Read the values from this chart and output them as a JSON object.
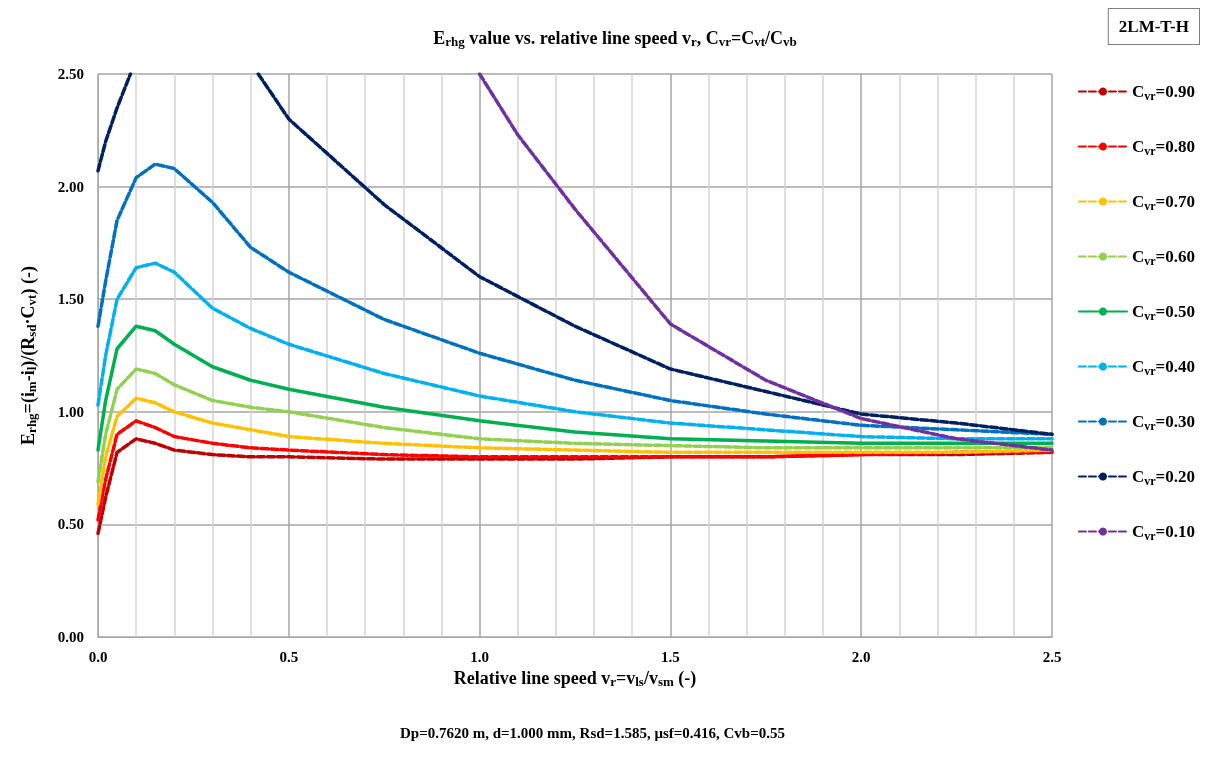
{
  "chart_data": {
    "type": "line",
    "title": "E$_{rhg}$ value vs. relative line speed v$_{r}$, C$_{vr}$=C$_{vt}$/C$_{vb}$",
    "xlabel": "Relative line speed v$_{r}$=v$_{ls}$/v$_{sm}$ (-)",
    "ylabel": "E$_{rhg}$=(i$_{m}$-i$_{l}$)/(R$_{sd}$·C$_{vt}$) (-)",
    "annotations": [
      "2LM-T-H",
      "Dp=0.7620 m, d=1.000 mm, Rsd=1.585, μsf=0.416, Cvb=0.55"
    ],
    "x": [
      0,
      0.02,
      0.05,
      0.1,
      0.15,
      0.2,
      0.3,
      0.4,
      0.5,
      0.75,
      1.0,
      1.25,
      1.5,
      1.75,
      2.0,
      2.25,
      2.5
    ],
    "series": [
      {
        "name": "C$_{vr}$=0.90",
        "color": "#c00000",
        "line_style": "dashed",
        "values": [
          0.46,
          0.62,
          0.82,
          0.88,
          0.86,
          0.83,
          0.81,
          0.8,
          0.8,
          0.79,
          0.79,
          0.79,
          0.8,
          0.8,
          0.81,
          0.81,
          0.82
        ]
      },
      {
        "name": "C$_{vr}$=0.80",
        "color": "#ff0000",
        "line_style": "dashed",
        "values": [
          0.52,
          0.7,
          0.9,
          0.96,
          0.93,
          0.89,
          0.86,
          0.84,
          0.83,
          0.81,
          0.8,
          0.8,
          0.8,
          0.8,
          0.81,
          0.82,
          0.82
        ]
      },
      {
        "name": "C$_{vr}$=0.70",
        "color": "#ffc000",
        "line_style": "dashed",
        "values": [
          0.59,
          0.8,
          0.98,
          1.06,
          1.04,
          1.0,
          0.95,
          0.92,
          0.89,
          0.86,
          0.84,
          0.83,
          0.82,
          0.82,
          0.82,
          0.82,
          0.83
        ]
      },
      {
        "name": "C$_{vr}$=0.60",
        "color": "#92d050",
        "line_style": "dashed",
        "values": [
          0.69,
          0.9,
          1.1,
          1.19,
          1.17,
          1.12,
          1.05,
          1.02,
          1.0,
          0.93,
          0.88,
          0.86,
          0.85,
          0.84,
          0.84,
          0.84,
          0.84
        ]
      },
      {
        "name": "C$_{vr}$=0.50",
        "color": "#00b050",
        "line_style": "solid",
        "values": [
          0.83,
          1.05,
          1.28,
          1.38,
          1.36,
          1.3,
          1.2,
          1.14,
          1.1,
          1.02,
          0.96,
          0.91,
          0.88,
          0.87,
          0.86,
          0.86,
          0.86
        ]
      },
      {
        "name": "C$_{vr}$=0.40",
        "color": "#00b0f0",
        "line_style": "dashed",
        "values": [
          1.03,
          1.25,
          1.5,
          1.64,
          1.66,
          1.62,
          1.46,
          1.37,
          1.3,
          1.17,
          1.07,
          1.0,
          0.95,
          0.92,
          0.89,
          0.88,
          0.88
        ]
      },
      {
        "name": "C$_{vr}$=0.30",
        "color": "#0070c0",
        "line_style": "dashed",
        "values": [
          1.38,
          1.58,
          1.85,
          2.04,
          2.1,
          2.08,
          1.93,
          1.73,
          1.62,
          1.41,
          1.26,
          1.14,
          1.05,
          0.99,
          0.94,
          0.92,
          0.9
        ]
      },
      {
        "name": "C$_{vr}$=0.20",
        "color": "#002060",
        "line_style": "dashed",
        "x": [
          0,
          0.02,
          0.05,
          0.085,
          0.1,
          0.42,
          0.5,
          0.75,
          1.0,
          1.25,
          1.5,
          1.75,
          2.0,
          2.25,
          2.5
        ],
        "values": [
          2.07,
          2.2,
          2.35,
          2.5,
          null,
          2.5,
          2.3,
          1.92,
          1.6,
          1.38,
          1.19,
          1.09,
          0.99,
          0.95,
          0.9
        ]
      },
      {
        "name": "C$_{vr}$=0.10",
        "color": "#7030a0",
        "line_style": "dashed",
        "x": [
          1.0,
          1.1,
          1.25,
          1.5,
          1.75,
          2.0,
          2.25,
          2.5
        ],
        "values": [
          2.5,
          2.23,
          1.9,
          1.39,
          1.14,
          0.97,
          0.88,
          0.83
        ]
      }
    ],
    "xlim": [
      0,
      2.5
    ],
    "xticks": [
      {
        "value": 0,
        "label": "0.0"
      },
      {
        "value": 0.1,
        "label": null
      },
      {
        "value": 0.2,
        "label": null
      },
      {
        "value": 0.3,
        "label": null
      },
      {
        "value": 0.4,
        "label": null
      },
      {
        "value": 0.5,
        "label": "0.5"
      },
      {
        "value": 0.6,
        "label": null
      },
      {
        "value": 0.7,
        "label": null
      },
      {
        "value": 0.8,
        "label": null
      },
      {
        "value": 0.9,
        "label": null
      },
      {
        "value": 1.0,
        "label": "1.0"
      },
      {
        "value": 1.1,
        "label": null
      },
      {
        "value": 1.2,
        "label": null
      },
      {
        "value": 1.3,
        "label": null
      },
      {
        "value": 1.4,
        "label": null
      },
      {
        "value": 1.5,
        "label": "1.5"
      },
      {
        "value": 1.6,
        "label": null
      },
      {
        "value": 1.7,
        "label": null
      },
      {
        "value": 1.8,
        "label": null
      },
      {
        "value": 1.9,
        "label": null
      },
      {
        "value": 2.0,
        "label": "2.0"
      },
      {
        "value": 2.1,
        "label": null
      },
      {
        "value": 2.2,
        "label": null
      },
      {
        "value": 2.3,
        "label": null
      },
      {
        "value": 2.4,
        "label": null
      },
      {
        "value": 2.5,
        "label": "2.5"
      }
    ],
    "ylim": [
      0,
      2.5
    ],
    "yticks": [
      {
        "value": 0,
        "label": "0.00"
      },
      {
        "value": 0.5,
        "label": "0.50"
      },
      {
        "value": 1.0,
        "label": "1.00"
      },
      {
        "value": 1.5,
        "label": "1.50"
      },
      {
        "value": 2.0,
        "label": "2.00"
      },
      {
        "value": 2.5,
        "label": "2.50"
      }
    ],
    "grid": true,
    "legend": "right",
    "marker": "none"
  }
}
